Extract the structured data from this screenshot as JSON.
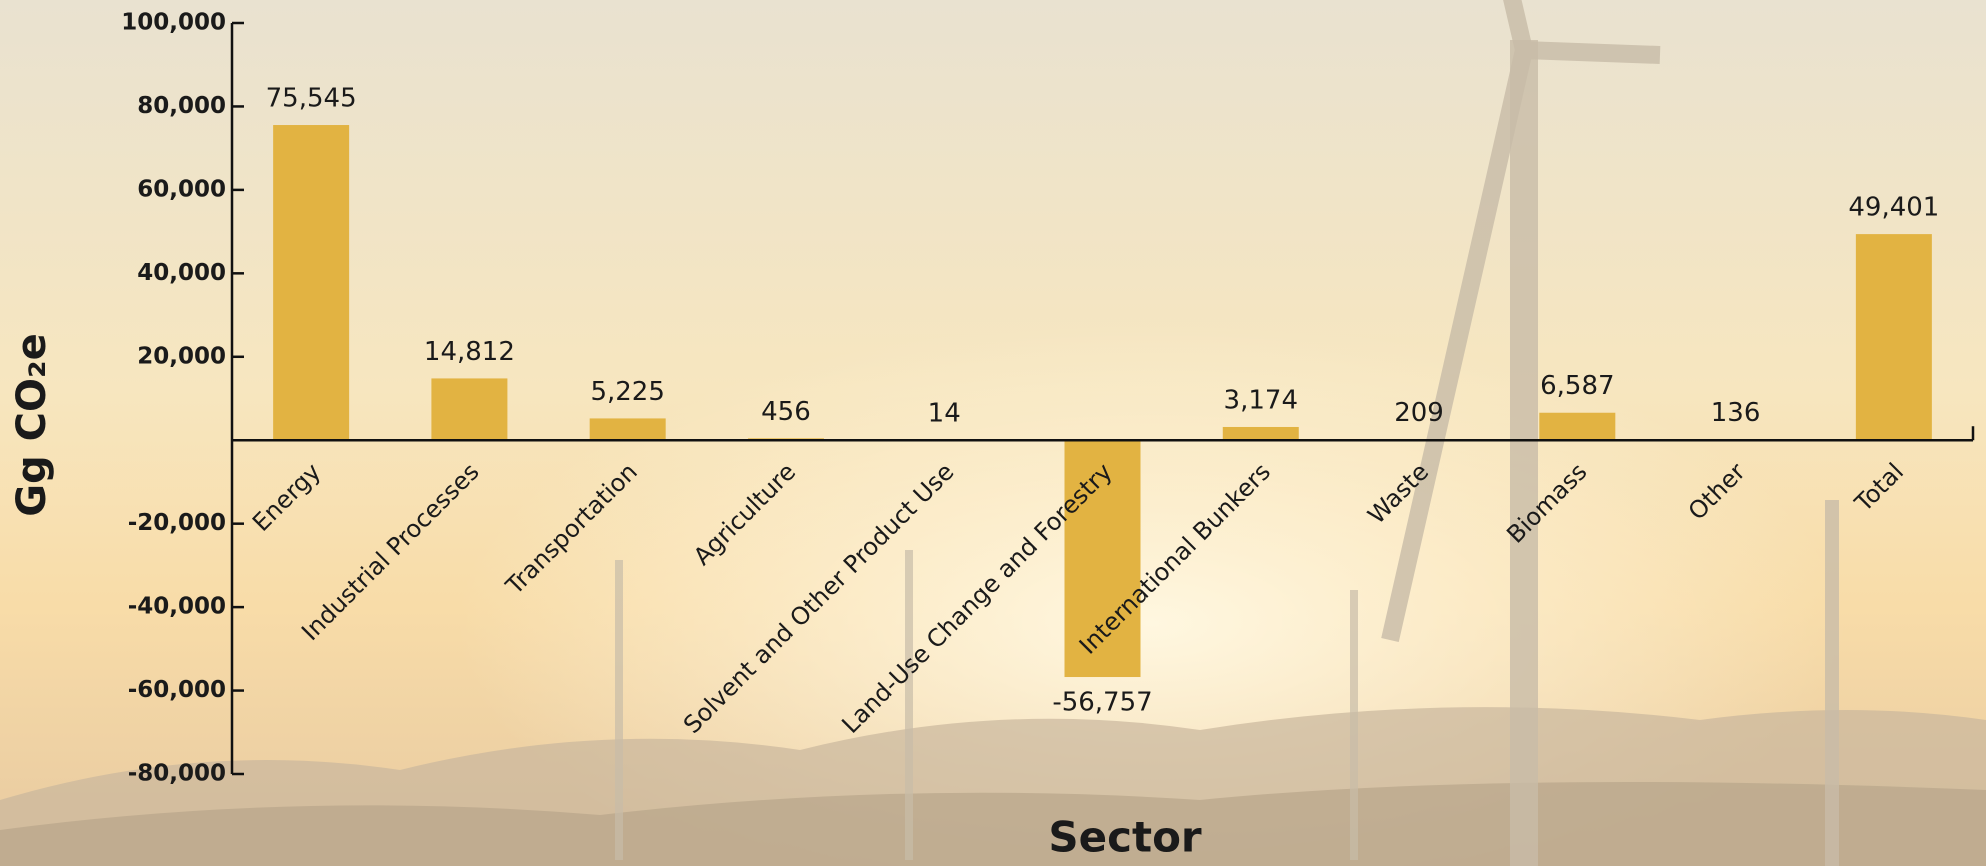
{
  "chart_data": {
    "type": "bar",
    "x_label": "Sector",
    "y_label": "Gg CO₂e",
    "categories": [
      "Energy",
      "Industrial Processes",
      "Transportation",
      "Agriculture",
      "Solvent and Other Product Use",
      "Land-Use Change and Forestry",
      "International Bunkers",
      "Waste",
      "Biomass",
      "Other",
      "Total"
    ],
    "values": [
      75545,
      14812,
      5225,
      456,
      14,
      -56757,
      3174,
      209,
      6587,
      136,
      49401
    ],
    "value_labels": [
      "75,545",
      "14,812",
      "5,225",
      "456",
      "14",
      "-56,757",
      "3,174",
      "209",
      "6,587",
      "136",
      "49,401"
    ],
    "color": "#e2b342",
    "ylim": [
      -80000,
      100000
    ],
    "yticks": [
      {
        "value": -80000,
        "label": "-80,000"
      },
      {
        "value": -60000,
        "label": "-60,000"
      },
      {
        "value": -40000,
        "label": "-40,000"
      },
      {
        "value": -20000,
        "label": "-20,000"
      },
      {
        "value": 20000,
        "label": "20,000"
      },
      {
        "value": 40000,
        "label": "40,000"
      },
      {
        "value": 60000,
        "label": "60,000"
      },
      {
        "value": 80000,
        "label": "80,000"
      },
      {
        "value": 100000,
        "label": "100,000"
      }
    ]
  }
}
